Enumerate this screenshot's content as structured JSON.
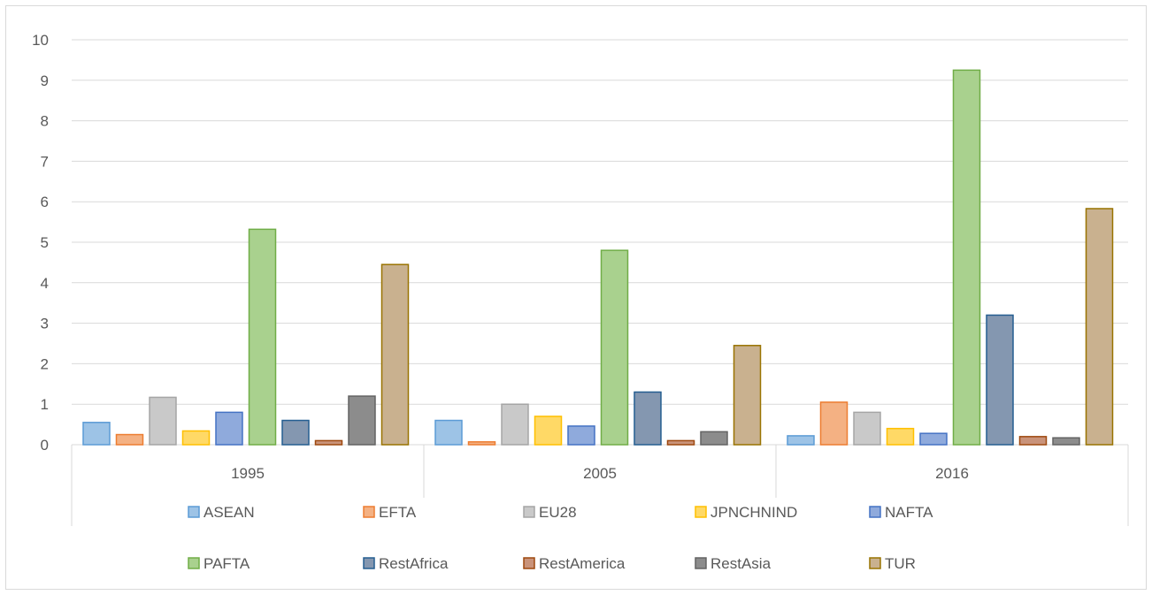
{
  "chart_data": {
    "type": "bar",
    "title": "",
    "xlabel": "",
    "ylabel": "",
    "categories": [
      "1995",
      "2005",
      "2016"
    ],
    "ylim": [
      0,
      10
    ],
    "yticks": [
      "0",
      "1",
      "2",
      "3",
      "4",
      "5",
      "6",
      "7",
      "8",
      "9",
      "10"
    ],
    "grid": true,
    "legend_position": "bottom",
    "series": [
      {
        "name": "ASEAN",
        "color": "#9dc3e6",
        "stroke": "#5b9bd5",
        "values": [
          0.55,
          0.6,
          0.22
        ]
      },
      {
        "name": "EFTA",
        "color": "#f4b183",
        "stroke": "#ed7d31",
        "values": [
          0.25,
          0.07,
          1.05
        ]
      },
      {
        "name": "EU28",
        "color": "#c9c9c9",
        "stroke": "#a5a5a5",
        "values": [
          1.17,
          1.0,
          0.8
        ]
      },
      {
        "name": "JPNCHNIND",
        "color": "#ffd966",
        "stroke": "#ffc000",
        "values": [
          0.34,
          0.7,
          0.4
        ]
      },
      {
        "name": "NAFTA",
        "color": "#8faadc",
        "stroke": "#4472c4",
        "values": [
          0.8,
          0.46,
          0.28
        ]
      },
      {
        "name": "PAFTA",
        "color": "#a9d18e",
        "stroke": "#70ad47",
        "values": [
          5.32,
          4.8,
          9.25
        ]
      },
      {
        "name": "RestAfrica",
        "color": "#8497b0",
        "stroke": "#255e91",
        "values": [
          0.6,
          1.3,
          3.2
        ]
      },
      {
        "name": "RestAmerica",
        "color": "#c9937a",
        "stroke": "#9e480e",
        "values": [
          0.1,
          0.1,
          0.2
        ]
      },
      {
        "name": "RestAsia",
        "color": "#8c8c8c",
        "stroke": "#636363",
        "values": [
          1.2,
          0.32,
          0.17
        ]
      },
      {
        "name": "TUR",
        "color": "#c9b18f",
        "stroke": "#997300",
        "values": [
          4.45,
          2.45,
          5.83
        ]
      }
    ]
  }
}
